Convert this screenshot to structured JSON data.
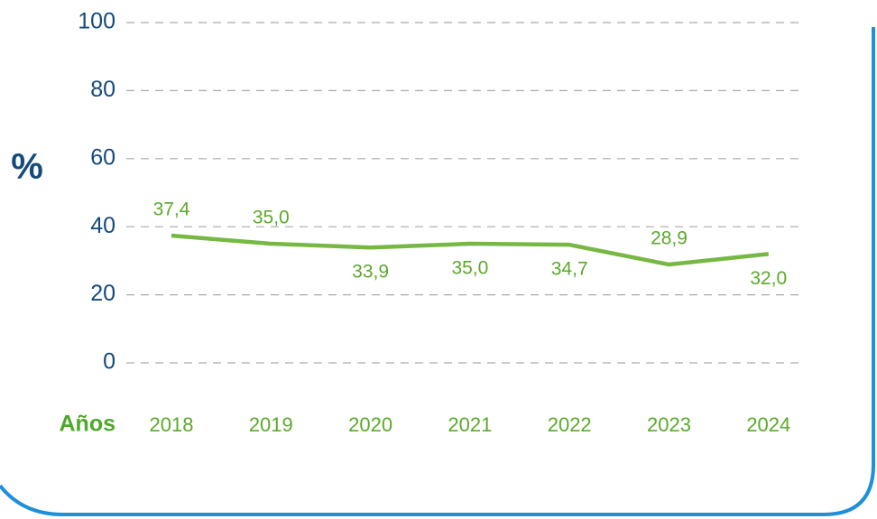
{
  "chart_data": {
    "type": "line",
    "y_label": "%",
    "x_label": "Años",
    "categories": [
      "2018",
      "2019",
      "2020",
      "2021",
      "2022",
      "2023",
      "2024"
    ],
    "series": [
      {
        "color": "#76b843",
        "values": [
          37.4,
          35.0,
          33.9,
          35.0,
          34.7,
          28.9,
          32.0
        ],
        "value_labels": [
          "37,4",
          "35,0",
          "33,9",
          "35,0",
          "34,7",
          "28,9",
          "32,0"
        ]
      }
    ],
    "ylim": [
      0,
      100
    ],
    "yticks": [
      0,
      20,
      40,
      60,
      80,
      100
    ],
    "grid": true
  }
}
